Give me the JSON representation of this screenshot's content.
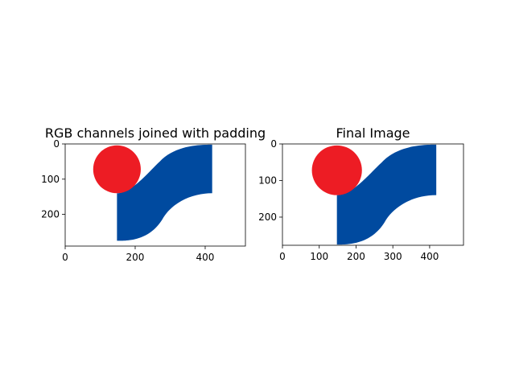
{
  "chart_data": [
    {
      "type": "image",
      "title": "RGB channels joined with padding",
      "x_ticks": [
        0,
        200,
        400
      ],
      "y_ticks": [
        0,
        100,
        200
      ],
      "xlim": [
        0,
        515
      ],
      "ylim": [
        290,
        0
      ],
      "colors": {
        "circle": "#ed1c24",
        "shape": "#004a9f"
      },
      "circle": {
        "cx": 148,
        "cy": 72,
        "r": 68
      },
      "blue_shape": {
        "x_left": 148,
        "x_right": 420,
        "y_top": 2,
        "y_mid": 140,
        "y_bottom": 275,
        "x_curve_mid": 270
      }
    },
    {
      "type": "image",
      "title": "Final Image",
      "x_ticks": [
        0,
        100,
        200,
        300,
        400
      ],
      "y_ticks": [
        0,
        100,
        200
      ],
      "xlim": [
        0,
        492
      ],
      "ylim": [
        277,
        0
      ],
      "colors": {
        "circle": "#ed1c24",
        "shape": "#004a9f"
      },
      "circle": {
        "cx": 148,
        "cy": 72,
        "r": 68
      },
      "blue_shape": {
        "x_left": 148,
        "x_right": 418,
        "y_top": 2,
        "y_mid": 140,
        "y_bottom": 275,
        "x_curve_mid": 270
      }
    }
  ]
}
